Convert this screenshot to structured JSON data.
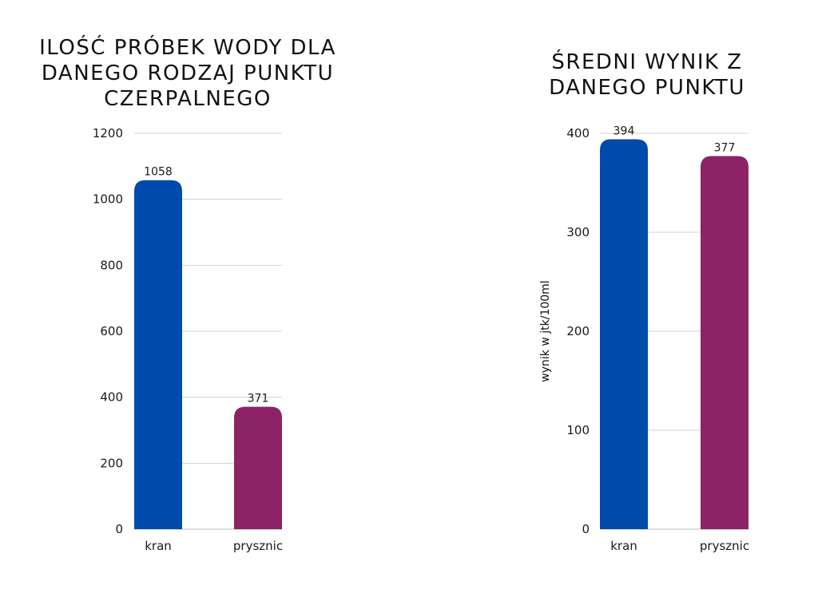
{
  "chart_data": [
    {
      "type": "bar",
      "title": "ILOŚĆ PRÓBEK WODY DLA DANEGO RODZAJ PUNKTU CZERPALNEGO",
      "xlabel": "",
      "ylabel": "",
      "categories": [
        "kran",
        "prysznic"
      ],
      "values": [
        1058,
        371
      ],
      "data_labels": [
        "1058",
        "371"
      ],
      "ylim": [
        0,
        1200
      ],
      "yticks": [
        0,
        200,
        400,
        600,
        800,
        1000,
        1200
      ],
      "grid": true,
      "legend": "none",
      "colors": [
        "#004aad",
        "#8c2367"
      ]
    },
    {
      "type": "bar",
      "title": "ŚREDNI WYNIK Z DANEGO PUNKTU",
      "xlabel": "",
      "ylabel": "wynik w jtk/100ml",
      "categories": [
        "kran",
        "prysznic"
      ],
      "values": [
        394,
        377
      ],
      "data_labels": [
        "394",
        "377"
      ],
      "ylim": [
        0,
        400
      ],
      "yticks": [
        0,
        100,
        200,
        300,
        400
      ],
      "grid": true,
      "legend": "none",
      "colors": [
        "#004aad",
        "#8c2367"
      ]
    }
  ]
}
